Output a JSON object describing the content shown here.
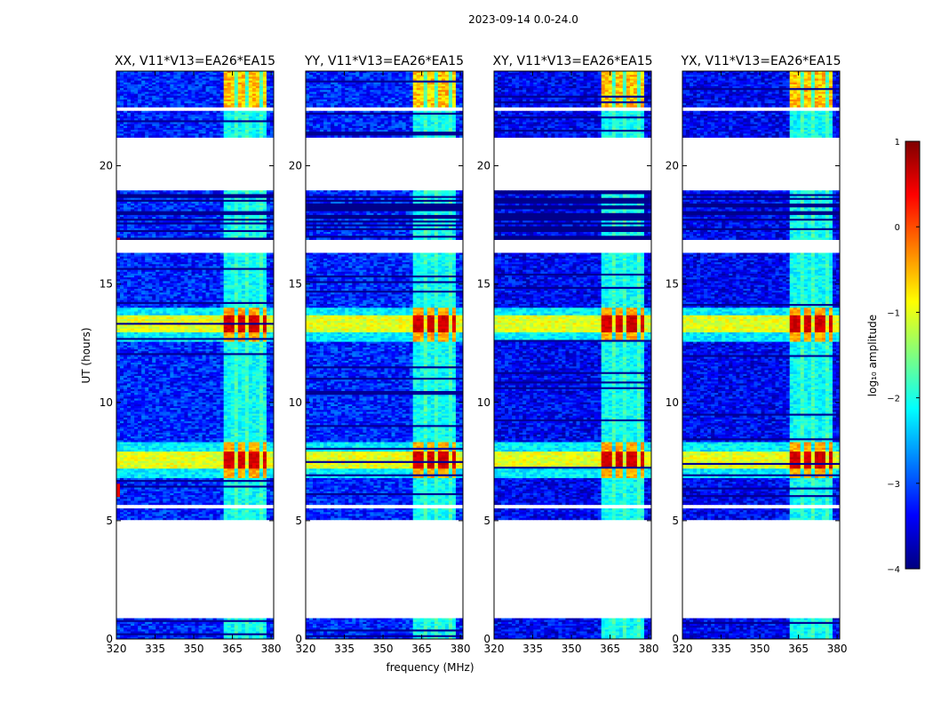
{
  "chart_data": {
    "type": "heatmap",
    "suptitle": "2023-09-14 0.0-24.0",
    "xlabel": "frequency (MHz)",
    "ylabel": "UT (hours)",
    "xlim": [
      320,
      381
    ],
    "ylim": [
      0,
      24
    ],
    "xticks": [
      320,
      335,
      350,
      365,
      380
    ],
    "yticks": [
      0,
      5,
      10,
      15,
      20
    ],
    "colorbar": {
      "label": "log₁₀ amplitude",
      "range": [
        -4,
        1
      ],
      "ticks": [
        1,
        0,
        -1,
        -2,
        -3,
        -4
      ],
      "tick_labels": [
        "1",
        "0",
        "−1",
        "−2",
        "−3",
        "−4"
      ],
      "colormap": "jet",
      "stops": [
        "#00007f",
        "#0000ff",
        "#007fff",
        "#00ffff",
        "#7fff7f",
        "#ffff00",
        "#ff7f00",
        "#ff0000",
        "#7f0000"
      ]
    },
    "data_gaps_ut": [
      [
        0.85,
        5.05
      ],
      [
        5.5,
        5.7
      ],
      [
        16.3,
        16.9
      ],
      [
        19.0,
        21.2
      ],
      [
        22.3,
        22.5
      ]
    ],
    "rfi_band_mhz": [
      361.5,
      378
    ],
    "rfi_channels_mhz": [
      [
        361.5,
        365.5
      ],
      [
        366.5,
        370.5
      ],
      [
        371.5,
        375.5
      ],
      [
        376.5,
        378
      ]
    ],
    "high_amplitude_bursts_ut": [
      [
        6.8,
        8.3
      ],
      [
        12.6,
        14.0
      ]
    ],
    "panels": [
      {
        "title": "XX, V11*V13=EA26*EA15",
        "polarization": "XX"
      },
      {
        "title": "YY, V11*V13=EA26*EA15",
        "polarization": "YY"
      },
      {
        "title": "XY, V11*V13=EA26*EA15",
        "polarization": "XY"
      },
      {
        "title": "YX, V11*V13=EA26*EA15",
        "polarization": "YX"
      }
    ]
  }
}
